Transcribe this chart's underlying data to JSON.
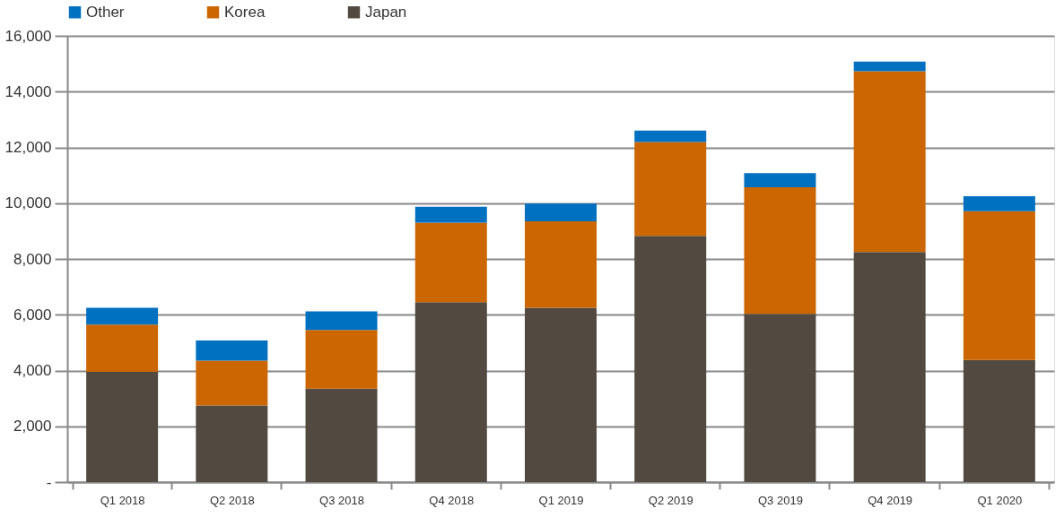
{
  "chart_data": {
    "type": "bar",
    "stacked": true,
    "categories": [
      "Q1 2018",
      "Q2 2018",
      "Q3 2018",
      "Q4 2018",
      "Q1 2019",
      "Q2 2019",
      "Q3 2019",
      "Q4 2019",
      "Q1 2020"
    ],
    "series": [
      {
        "name": "Japan",
        "color": "#524a40",
        "values": [
          3950,
          2750,
          3350,
          6450,
          6250,
          8830,
          6030,
          8250,
          4380
        ]
      },
      {
        "name": "Korea",
        "color": "#cc6600",
        "values": [
          1700,
          1600,
          2100,
          2850,
          3100,
          3360,
          4540,
          6480,
          5330
        ]
      },
      {
        "name": "Other",
        "color": "#0070c0",
        "values": [
          600,
          730,
          670,
          570,
          630,
          410,
          510,
          350,
          540
        ]
      }
    ],
    "ylim": [
      0,
      16000
    ],
    "yticks": [
      {
        "value": 0,
        "label": "-"
      },
      {
        "value": 2000,
        "label": "2,000"
      },
      {
        "value": 4000,
        "label": "4,000"
      },
      {
        "value": 6000,
        "label": "6,000"
      },
      {
        "value": 8000,
        "label": "8,000"
      },
      {
        "value": 10000,
        "label": "10,000"
      },
      {
        "value": 12000,
        "label": "12,000"
      },
      {
        "value": 14000,
        "label": "14,000"
      },
      {
        "value": 16000,
        "label": "16,000"
      }
    ],
    "grid": "y",
    "legend": "top"
  }
}
